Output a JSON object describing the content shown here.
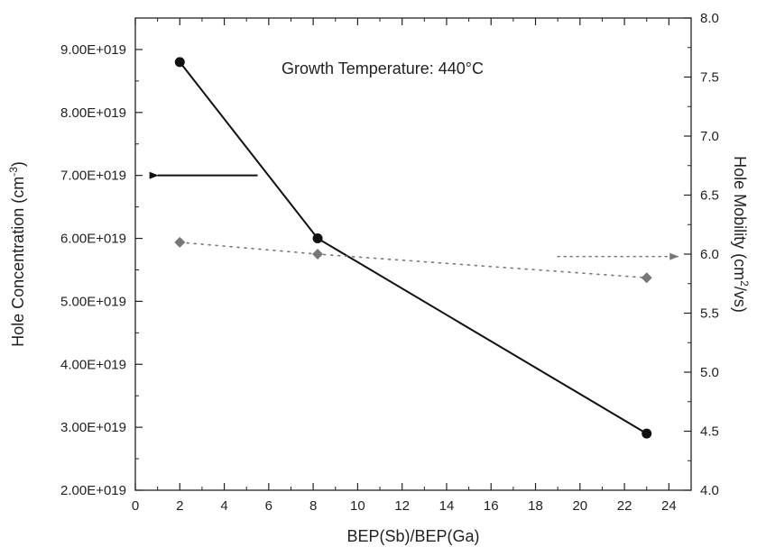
{
  "chart_data": {
    "type": "line",
    "annotation": "Growth Temperature: 440°C",
    "xlabel": "BEP(Sb)/BEP(Ga)",
    "ylabel_left": "Hole Concentration (cm",
    "ylabel_left_sup": "-3",
    "ylabel_left_close": ")",
    "ylabel_right": "Hole Mobility (cm",
    "ylabel_right_sup": "2",
    "ylabel_right_close": "/vs)",
    "xlim": [
      0,
      25
    ],
    "ylim_left": [
      2e+19,
      9.5e+19
    ],
    "ylim_right": [
      4.0,
      8.0
    ],
    "x_ticks": [
      0,
      2,
      4,
      6,
      8,
      10,
      12,
      14,
      16,
      18,
      20,
      22,
      24
    ],
    "x_tick_labels": [
      "0",
      "2",
      "4",
      "6",
      "8",
      "10",
      "12",
      "14",
      "16",
      "18",
      "20",
      "22",
      "24"
    ],
    "y_left_ticks": [
      2e+19,
      3e+19,
      4e+19,
      5e+19,
      6e+19,
      7e+19,
      8e+19,
      9e+19
    ],
    "y_left_tick_labels": [
      "2.00E+019",
      "3.00E+019",
      "4.00E+019",
      "5.00E+019",
      "6.00E+019",
      "7.00E+019",
      "8.00E+019",
      "9.00E+019"
    ],
    "y_right_ticks": [
      4.0,
      4.5,
      5.0,
      5.5,
      6.0,
      6.5,
      7.0,
      7.5,
      8.0
    ],
    "y_right_tick_labels": [
      "4.0",
      "4.5",
      "5.0",
      "5.5",
      "6.0",
      "6.5",
      "7.0",
      "7.5",
      "8.0"
    ],
    "series": [
      {
        "axis": "left",
        "marker": "circle",
        "line": "solid",
        "color": "#111111",
        "x": [
          2,
          8.2,
          23
        ],
        "values": [
          8.8e+19,
          6e+19,
          2.9e+19
        ]
      },
      {
        "axis": "right",
        "marker": "diamond",
        "line": "dotted",
        "color": "#777777",
        "x": [
          2,
          8.2,
          23
        ],
        "values": [
          6.1,
          6.0,
          5.8
        ]
      }
    ],
    "indicator_arrows": [
      {
        "series_axis": "left",
        "direction": "left",
        "from": [
          5.5,
          7e+19
        ],
        "to": [
          1.0,
          7e+19
        ]
      },
      {
        "series_axis": "right",
        "direction": "right",
        "from": [
          19.0,
          5.98
        ],
        "to": [
          24.4,
          5.98
        ]
      }
    ],
    "grid": false
  }
}
